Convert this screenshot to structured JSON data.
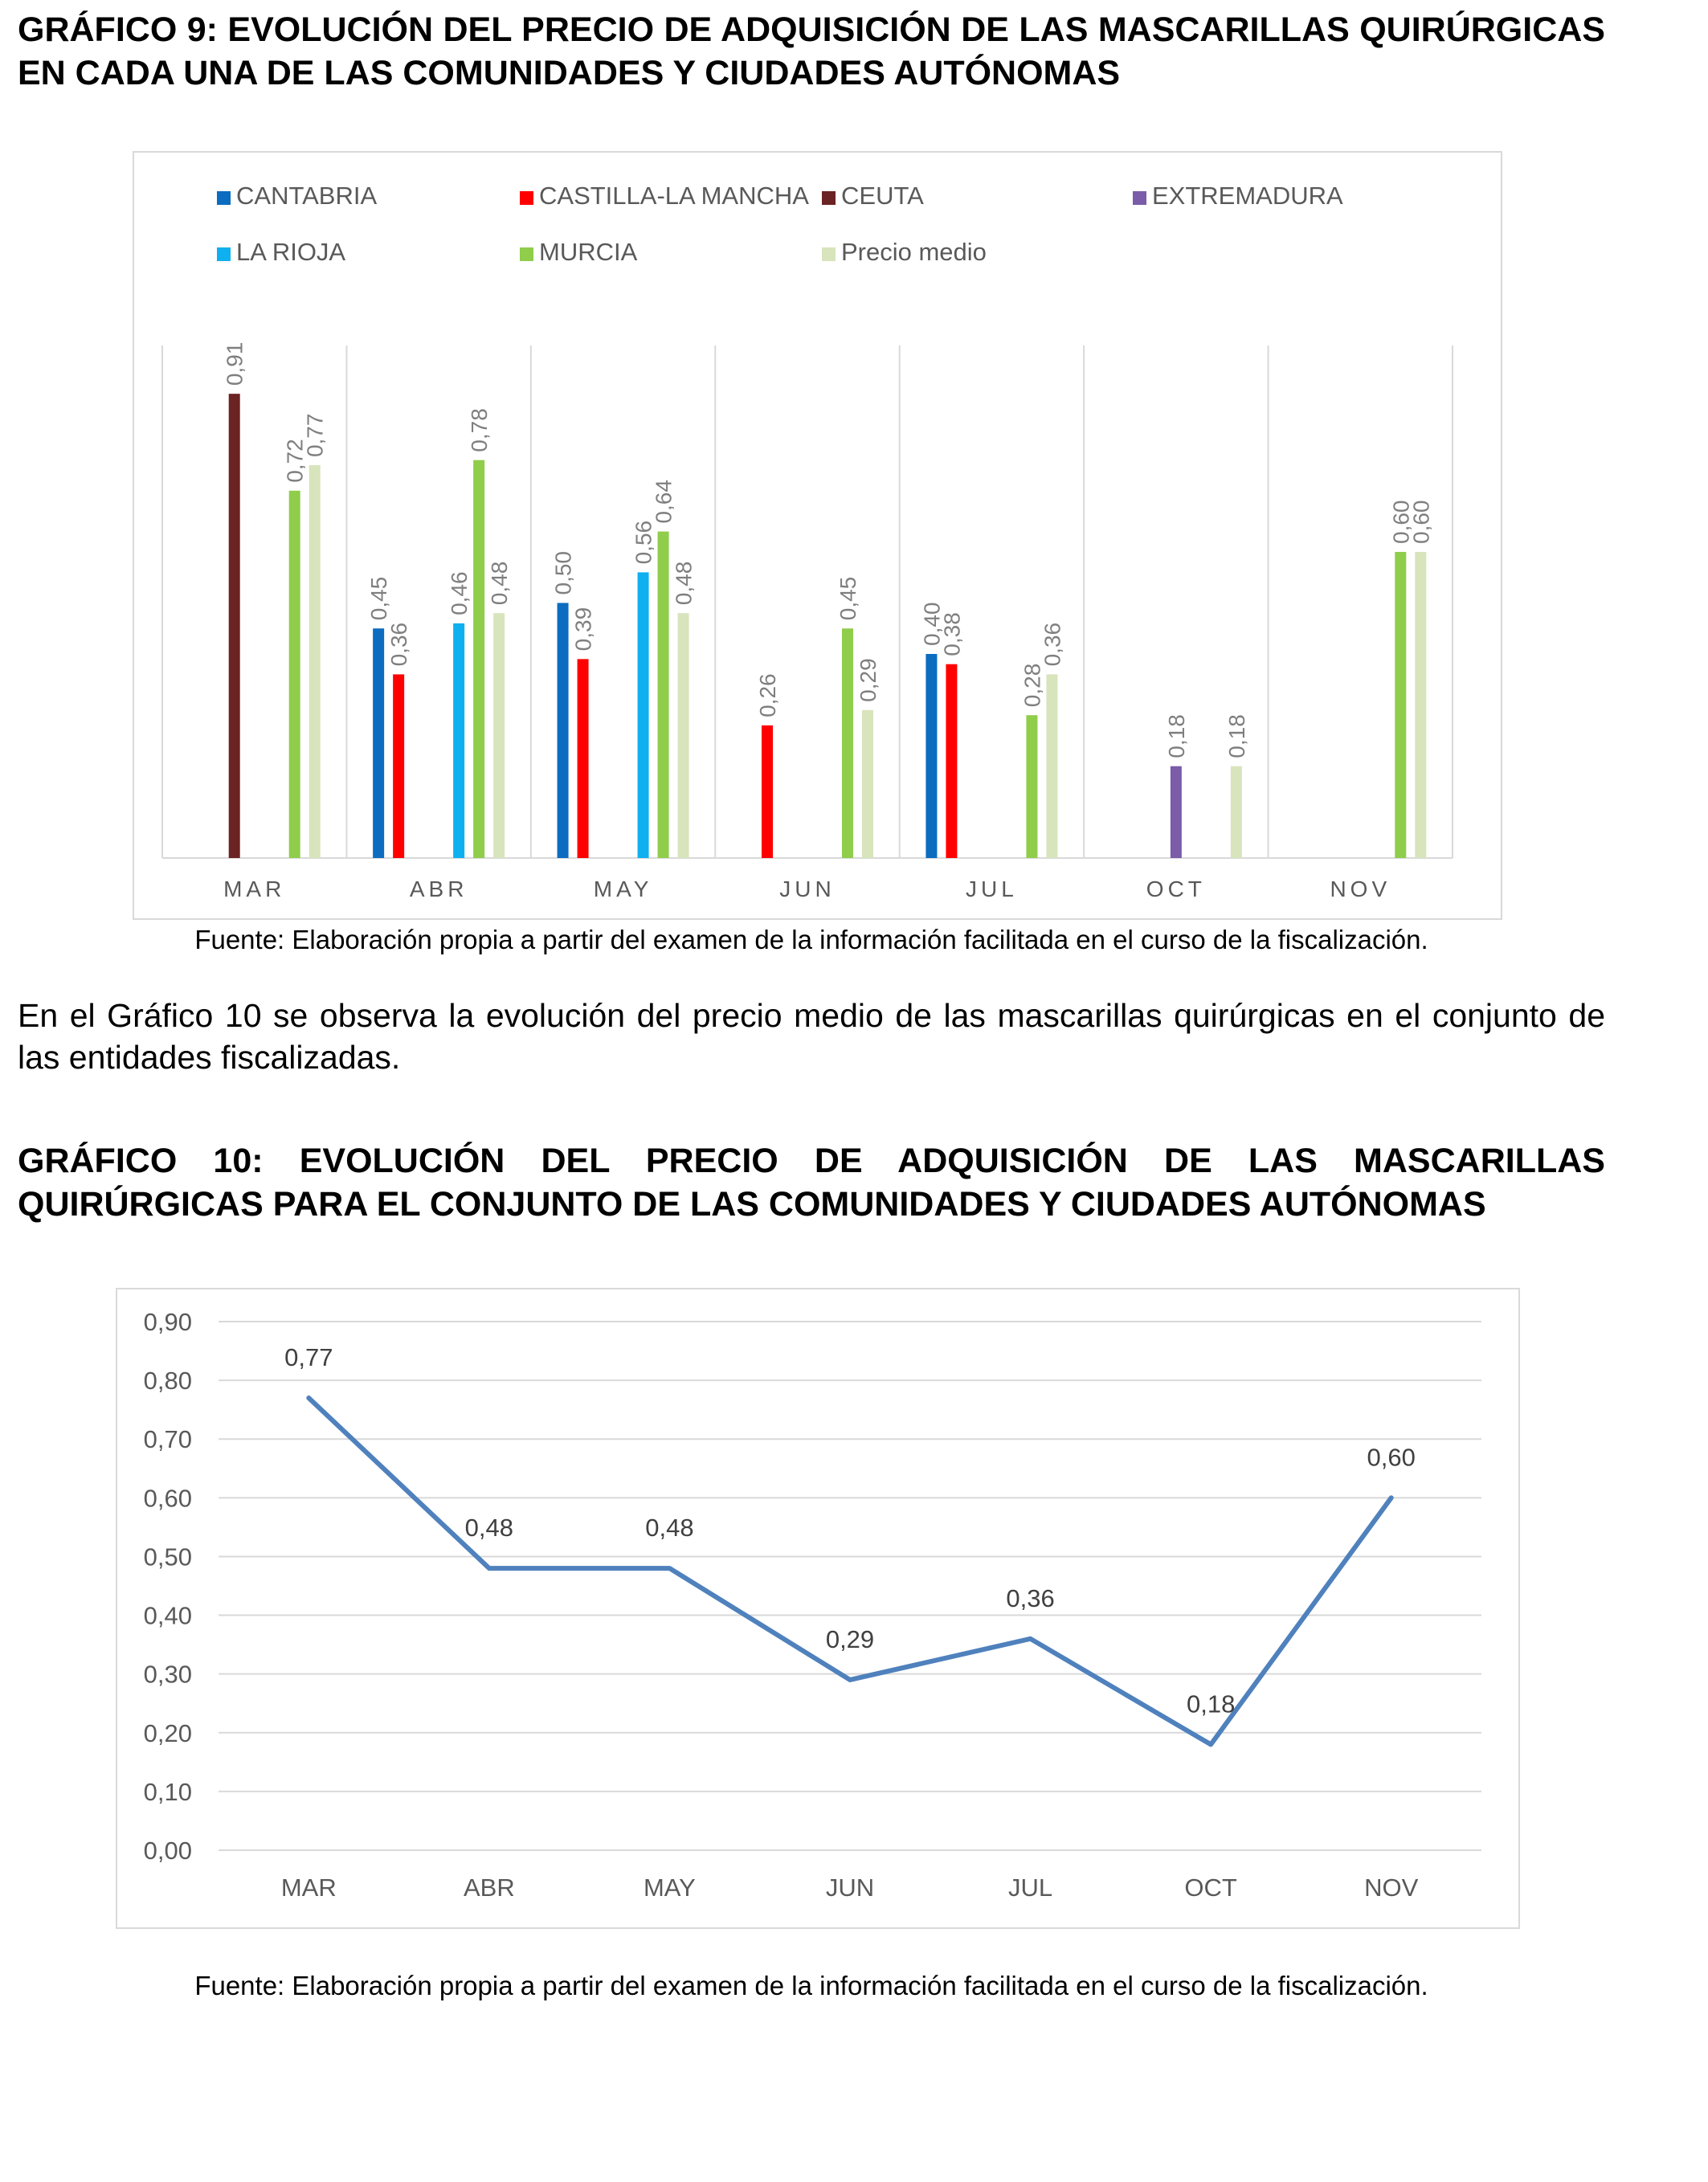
{
  "chart9": {
    "title": "GRÁFICO 9: EVOLUCIÓN DEL PRECIO DE ADQUISICIÓN DE LAS MASCARILLAS QUIRÚRGICAS EN CADA UNA DE LAS COMUNIDADES Y CIUDADES AUTÓNOMAS",
    "source": "Fuente: Elaboración propia a partir del examen de la información facilitada en el curso de la fiscalización."
  },
  "paragraph": "En el Gráfico 10 se observa la evolución del precio medio de las mascarillas quirúrgicas en el conjunto de las entidades fiscalizadas.",
  "chart10": {
    "title": "GRÁFICO 10: EVOLUCIÓN DEL PRECIO DE ADQUISICIÓN DE LAS MASCARILLAS QUIRÚRGICAS PARA EL CONJUNTO DE LAS COMUNIDADES Y CIUDADES AUTÓNOMAS",
    "source": "Fuente: Elaboración propia a partir del examen de la información facilitada en el curso de la fiscalización."
  },
  "chart_data": [
    {
      "type": "bar",
      "categories": [
        "MAR",
        "ABR",
        "MAY",
        "JUN",
        "JUL",
        "OCT",
        "NOV"
      ],
      "ylim": [
        0,
        1.0
      ],
      "grid": false,
      "legend_position": "top",
      "series": [
        {
          "name": "CANTABRIA",
          "color": "#0b6cc0",
          "values": [
            null,
            0.45,
            0.5,
            null,
            0.4,
            null,
            null
          ],
          "labels": [
            null,
            "0,45",
            "0,50",
            null,
            "0,40",
            null,
            null
          ]
        },
        {
          "name": "CASTILLA-LA MANCHA",
          "color": "#ff0000",
          "values": [
            null,
            0.36,
            0.39,
            0.26,
            0.38,
            null,
            null
          ],
          "labels": [
            null,
            "0,36",
            "0,39",
            "0,26",
            "0,38",
            null,
            null
          ]
        },
        {
          "name": "CEUTA",
          "color": "#6b2323",
          "values": [
            0.91,
            null,
            null,
            null,
            null,
            null,
            null
          ],
          "labels": [
            "0,91",
            null,
            null,
            null,
            null,
            null,
            null
          ]
        },
        {
          "name": "EXTREMADURA",
          "color": "#7a5ca8",
          "values": [
            null,
            null,
            null,
            null,
            null,
            0.18,
            null
          ],
          "labels": [
            null,
            null,
            null,
            null,
            null,
            "0,18",
            null
          ]
        },
        {
          "name": "LA RIOJA",
          "color": "#0fb0ef",
          "values": [
            null,
            0.46,
            0.56,
            null,
            null,
            null,
            null
          ],
          "labels": [
            null,
            "0,46",
            "0,56",
            null,
            null,
            null,
            null
          ]
        },
        {
          "name": "MURCIA",
          "color": "#8fcd4b",
          "values": [
            0.72,
            0.78,
            0.64,
            0.45,
            0.28,
            null,
            0.6
          ],
          "labels": [
            "0,72",
            "0,78",
            "0,64",
            "0,45",
            "0,28",
            null,
            "0,60"
          ]
        },
        {
          "name": "Precio medio",
          "color": "#d8e4bc",
          "values": [
            0.77,
            0.48,
            0.48,
            0.29,
            0.36,
            0.18,
            0.6
          ],
          "labels": [
            "0,77",
            "0,48",
            "0,48",
            "0,29",
            "0,36",
            "0,18",
            "0,60"
          ]
        }
      ]
    },
    {
      "type": "line",
      "categories": [
        "MAR",
        "ABR",
        "MAY",
        "JUN",
        "JUL",
        "OCT",
        "NOV"
      ],
      "ylim": [
        0,
        0.9
      ],
      "yticks": [
        "0,00",
        "0,10",
        "0,20",
        "0,30",
        "0,40",
        "0,50",
        "0,60",
        "0,70",
        "0,80",
        "0,90"
      ],
      "grid": true,
      "series": [
        {
          "color": "#4f81bd",
          "values": [
            0.77,
            0.48,
            0.48,
            0.29,
            0.36,
            0.18,
            0.6
          ],
          "labels": [
            "0,77",
            "0,48",
            "0,48",
            "0,29",
            "0,36",
            "0,18",
            "0,60"
          ]
        }
      ]
    }
  ]
}
